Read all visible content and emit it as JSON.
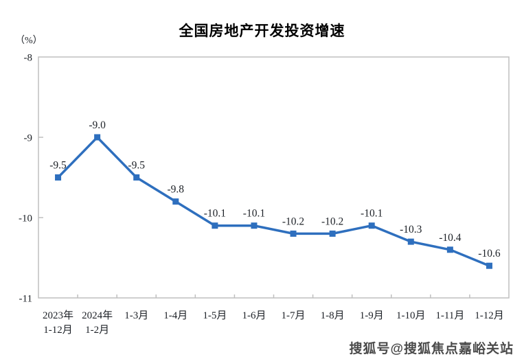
{
  "chart_data": {
    "type": "line",
    "title": "全国房地产开发投资增速",
    "unit_label": "（%）",
    "categories": [
      "2023年\n1-12月",
      "2024年\n1-2月",
      "1-3月",
      "1-4月",
      "1-5月",
      "1-6月",
      "1-7月",
      "1-8月",
      "1-9月",
      "1-10月",
      "1-11月",
      "1-12月"
    ],
    "values": [
      -9.5,
      -9.0,
      -9.5,
      -9.8,
      -10.1,
      -10.1,
      -10.2,
      -10.2,
      -10.1,
      -10.3,
      -10.4,
      -10.6
    ],
    "point_labels": [
      "-9.5",
      "-9.0",
      "-9.5",
      "-9.8",
      "-10.1",
      "-10.1",
      "-10.2",
      "-10.2",
      "-10.1",
      "-10.3",
      "-10.4",
      "-10.6"
    ],
    "y_ticks": [
      "-8",
      "-9",
      "-10",
      "-11"
    ],
    "y_tick_values": [
      -8,
      -9,
      -10,
      -11
    ],
    "ylim": [
      -11,
      -8
    ],
    "xlabel": "",
    "ylabel": "（%）",
    "grid": false,
    "legend": "none",
    "line_color": "#2E6FBE",
    "marker": "square",
    "axis_color": "#BFBFBF",
    "text_color": "#1C2026"
  },
  "watermark": {
    "text": "搜狐号@搜狐焦点嘉峪关站"
  }
}
